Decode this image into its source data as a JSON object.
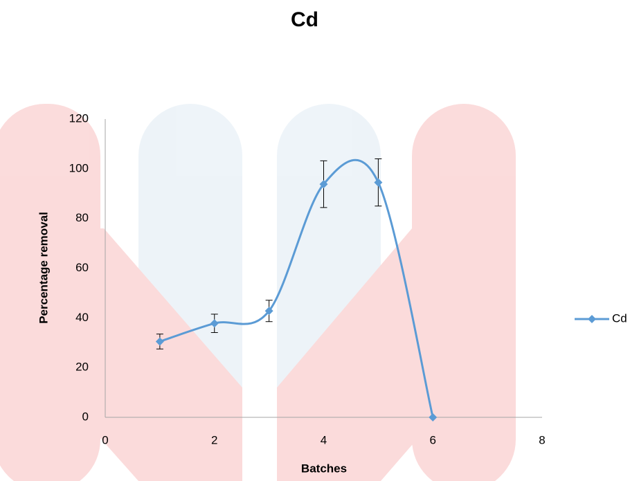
{
  "chart_data": {
    "type": "scatter",
    "title": "Cd",
    "x_label": "Batches",
    "y_label": "Percentage removal",
    "x": [
      1,
      2,
      3,
      4,
      5,
      6
    ],
    "series": [
      {
        "name": "Cd",
        "color": "#5b9bd5",
        "values": [
          30.5,
          37.8,
          42.8,
          93.8,
          94.5,
          0
        ],
        "errors": [
          3,
          3.7,
          4.3,
          9.4,
          9.5,
          0
        ]
      }
    ],
    "xlim": [
      0,
      8
    ],
    "xticks": [
      0,
      2,
      4,
      6,
      8
    ],
    "ylim": [
      0,
      120
    ],
    "yticks": [
      0,
      20,
      40,
      60,
      80,
      100,
      120
    ],
    "smooth": true,
    "grid": false,
    "legend": "right"
  }
}
